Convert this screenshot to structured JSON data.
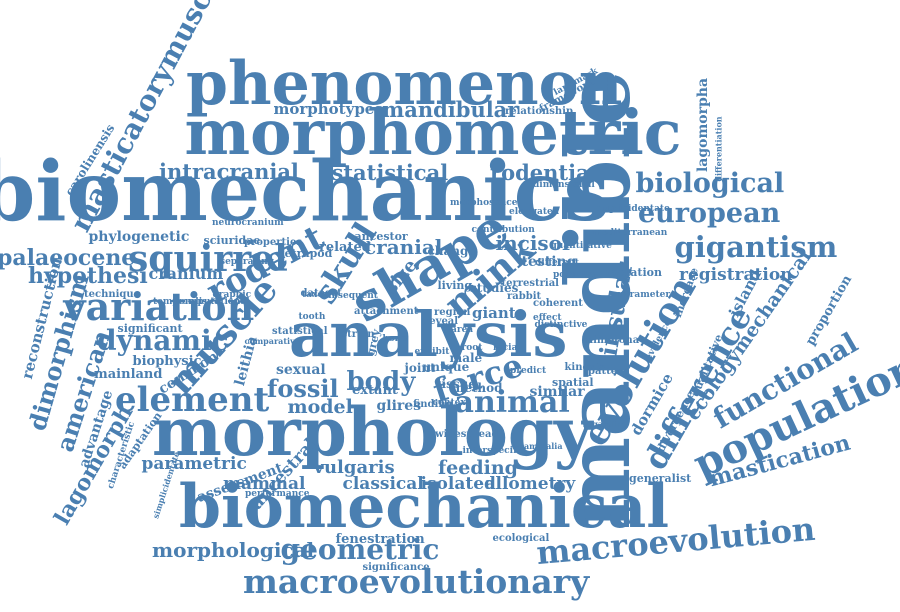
{
  "colors": {
    "word": "#4a7fb1",
    "background": "#ffffff"
  },
  "words": [
    "masticatorymuscles",
    "phenomenon",
    "morphotypes",
    "mandibular",
    "relationship",
    "morphometric",
    "lagomorpha",
    "biomechanics",
    "carolinensis",
    "intracranial",
    "statistical",
    "rodentia",
    "biological",
    "european",
    "phylogenetic",
    "sciuridae",
    "squirrel",
    "rodent",
    "skull",
    "shape",
    "mink",
    "gigantism",
    "palaeocene",
    "hypothesi",
    "cranium",
    "tetrapod",
    "related",
    "cranial",
    "incisor",
    "testing",
    "variation",
    "dynamic",
    "muscle",
    "size",
    "registration",
    "island",
    "reconstruction",
    "dimorphism",
    "analysis",
    "insular",
    "evolution",
    "difference",
    "ecologymechanical",
    "proportion",
    "functional",
    "mandible",
    "biophysic",
    "mainland",
    "common",
    "leithia",
    "sexual",
    "fossil",
    "body",
    "force",
    "american",
    "element",
    "animal",
    "model",
    "extant",
    "glires",
    "population",
    "dormice",
    "morphology",
    "advantage",
    "lagomorph",
    "parametric",
    "assessment",
    "ancestral",
    "vulgaris",
    "feeding",
    "mammal",
    "classical",
    "isolated",
    "allometry",
    "mastication",
    "biomechanical",
    "generalist",
    "fenestration",
    "morphological",
    "geometric",
    "macroevolution",
    "macroevolutionary",
    "significance",
    "ecological",
    "significant",
    "giant",
    "technique",
    "adaptation",
    "characteristic",
    "statistical",
    "quantitative",
    "different",
    "mediterranean",
    "radiation",
    "parameter",
    "increase",
    "mimotona",
    "kinesis",
    "spatial",
    "predict",
    "root",
    "male",
    "bone",
    "joint",
    "tissue",
    "method",
    "similar",
    "pattern",
    "evidence",
    "qualitative",
    "divergence",
    "regarding",
    "mammalia",
    "performance",
    "comparative",
    "ancestor",
    "properties",
    "neurocranium",
    "dataset",
    "framework",
    "landmark",
    "differentiation",
    "elongated",
    "dimensional",
    "duplicidentate",
    "simplicidentate",
    "change",
    "living",
    "potential",
    "coherent",
    "distinctive",
    "rabbit",
    "studies",
    "reveal",
    "facial",
    "context",
    "finding",
    "graphic",
    "temporalis",
    "computational",
    "separating",
    "widespread",
    "interspecific",
    "attachment",
    "tooth",
    "region",
    "area",
    "effect",
    "unique",
    "grey",
    "taxon",
    "morphospace",
    "contribution",
    "terrestrial",
    "subsequent",
    "strain",
    "exhibit",
    "species"
  ]
}
